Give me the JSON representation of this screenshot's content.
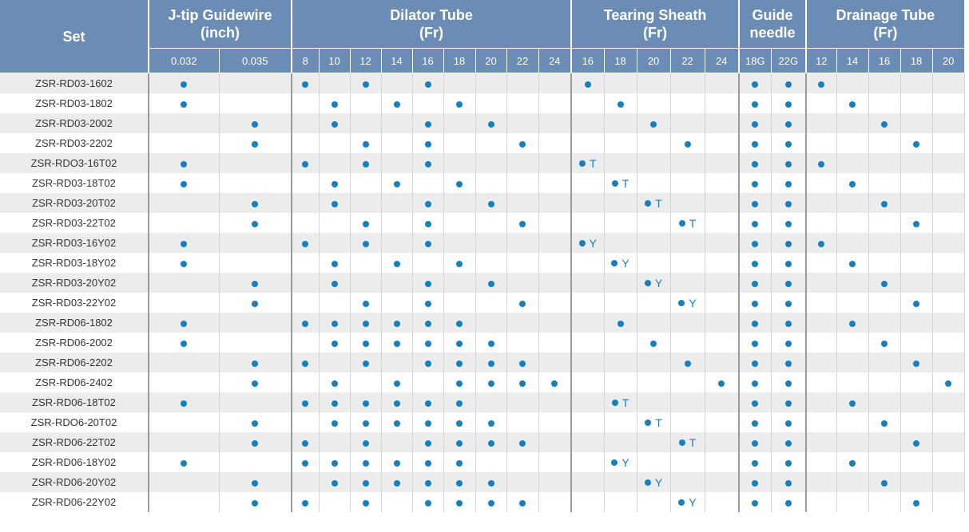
{
  "header": {
    "set_label": "Set",
    "groups": [
      {
        "key": "guidewire",
        "title_line1": "J-tip Guidewire",
        "title_line2": "(inch)",
        "sizes": [
          "0.032",
          "0.035"
        ]
      },
      {
        "key": "dilator",
        "title_line1": "Dilator Tube",
        "title_line2": "(Fr)",
        "sizes": [
          "8",
          "10",
          "12",
          "14",
          "16",
          "18",
          "20",
          "22",
          "24"
        ]
      },
      {
        "key": "sheath",
        "title_line1": "Tearing Sheath",
        "title_line2": "(Fr)",
        "sizes": [
          "16",
          "18",
          "20",
          "22",
          "24"
        ]
      },
      {
        "key": "needle",
        "title_line1": "Guide",
        "title_line2": "needle",
        "sizes": [
          "18G",
          "22G"
        ]
      },
      {
        "key": "drainage",
        "title_line1": "Drainage Tube",
        "title_line2": "(Fr)",
        "sizes": [
          "12",
          "14",
          "16",
          "18",
          "20"
        ]
      }
    ]
  },
  "colors": {
    "header_bg": "#6b8cb5",
    "dot": "#1580c0",
    "row_alt": "#ececec"
  },
  "rows": [
    {
      "set": "ZSR-RD03-1602",
      "guidewire": [
        "●",
        ""
      ],
      "dilator": [
        "●",
        "",
        "●",
        "",
        "●",
        "",
        "",
        "",
        ""
      ],
      "sheath": [
        "●",
        "",
        "",
        "",
        ""
      ],
      "needle": [
        "●",
        "●"
      ],
      "drainage": [
        "●",
        "",
        "",
        "",
        ""
      ]
    },
    {
      "set": "ZSR-RD03-1802",
      "guidewire": [
        "●",
        ""
      ],
      "dilator": [
        "",
        "●",
        "",
        "●",
        "",
        "●",
        "",
        "",
        ""
      ],
      "sheath": [
        "",
        "●",
        "",
        "",
        ""
      ],
      "needle": [
        "●",
        "●"
      ],
      "drainage": [
        "",
        "●",
        "",
        "",
        ""
      ]
    },
    {
      "set": "ZSR-RD03-2002",
      "guidewire": [
        "",
        "●"
      ],
      "dilator": [
        "",
        "●",
        "",
        "",
        "●",
        "",
        "●",
        "",
        ""
      ],
      "sheath": [
        "",
        "",
        "●",
        "",
        ""
      ],
      "needle": [
        "●",
        "●"
      ],
      "drainage": [
        "",
        "",
        "●",
        "",
        ""
      ]
    },
    {
      "set": "ZSR-RD03-2202",
      "guidewire": [
        "",
        "●"
      ],
      "dilator": [
        "",
        "",
        "●",
        "",
        "●",
        "",
        "",
        "●",
        ""
      ],
      "sheath": [
        "",
        "",
        "",
        "●",
        ""
      ],
      "needle": [
        "●",
        "●"
      ],
      "drainage": [
        "",
        "",
        "",
        "●",
        ""
      ]
    },
    {
      "set": "ZSR-RDO3-16T02",
      "guidewire": [
        "●",
        ""
      ],
      "dilator": [
        "●",
        "",
        "●",
        "",
        "●",
        "",
        "",
        "",
        ""
      ],
      "sheath": [
        "●T",
        "",
        "",
        "",
        ""
      ],
      "needle": [
        "●",
        "●"
      ],
      "drainage": [
        "●",
        "",
        "",
        "",
        ""
      ]
    },
    {
      "set": "ZSR-RD03-18T02",
      "guidewire": [
        "●",
        ""
      ],
      "dilator": [
        "",
        "●",
        "",
        "●",
        "",
        "●",
        "",
        "",
        ""
      ],
      "sheath": [
        "",
        "●T",
        "",
        "",
        ""
      ],
      "needle": [
        "●",
        "●"
      ],
      "drainage": [
        "",
        "●",
        "",
        "",
        ""
      ]
    },
    {
      "set": "ZSR-RD03-20T02",
      "guidewire": [
        "",
        "●"
      ],
      "dilator": [
        "",
        "●",
        "",
        "",
        "●",
        "",
        "●",
        "",
        ""
      ],
      "sheath": [
        "",
        "",
        "●T",
        "",
        ""
      ],
      "needle": [
        "●",
        "●"
      ],
      "drainage": [
        "",
        "",
        "●",
        "",
        ""
      ]
    },
    {
      "set": "ZSR-RD03-22T02",
      "guidewire": [
        "",
        "●"
      ],
      "dilator": [
        "",
        "",
        "●",
        "",
        "●",
        "",
        "",
        "●",
        ""
      ],
      "sheath": [
        "",
        "",
        "",
        "●T",
        ""
      ],
      "needle": [
        "●",
        "●"
      ],
      "drainage": [
        "",
        "",
        "",
        "●",
        ""
      ]
    },
    {
      "set": "ZSR-RD03-16Y02",
      "guidewire": [
        "●",
        ""
      ],
      "dilator": [
        "●",
        "",
        "●",
        "",
        "●",
        "",
        "",
        "",
        ""
      ],
      "sheath": [
        "●Y",
        "",
        "",
        "",
        ""
      ],
      "needle": [
        "●",
        "●"
      ],
      "drainage": [
        "●",
        "",
        "",
        "",
        ""
      ]
    },
    {
      "set": "ZSR-RD03-18Y02",
      "guidewire": [
        "●",
        ""
      ],
      "dilator": [
        "",
        "●",
        "",
        "●",
        "",
        "●",
        "",
        "",
        ""
      ],
      "sheath": [
        "",
        "●Y",
        "",
        "",
        ""
      ],
      "needle": [
        "●",
        "●"
      ],
      "drainage": [
        "",
        "●",
        "",
        "",
        ""
      ]
    },
    {
      "set": "ZSR-RD03-20Y02",
      "guidewire": [
        "",
        "●"
      ],
      "dilator": [
        "",
        "●",
        "",
        "",
        "●",
        "",
        "●",
        "",
        ""
      ],
      "sheath": [
        "",
        "",
        "●Y",
        "",
        ""
      ],
      "needle": [
        "●",
        "●"
      ],
      "drainage": [
        "",
        "",
        "●",
        "",
        ""
      ]
    },
    {
      "set": "ZSR-RD03-22Y02",
      "guidewire": [
        "",
        "●"
      ],
      "dilator": [
        "",
        "",
        "●",
        "",
        "●",
        "",
        "",
        "●",
        ""
      ],
      "sheath": [
        "",
        "",
        "",
        "●Y",
        ""
      ],
      "needle": [
        "●",
        "●"
      ],
      "drainage": [
        "",
        "",
        "",
        "●",
        ""
      ]
    },
    {
      "set": "ZSR-RD06-1802",
      "guidewire": [
        "●",
        ""
      ],
      "dilator": [
        "●",
        "●",
        "●",
        "●",
        "●",
        "●",
        "",
        "",
        ""
      ],
      "sheath": [
        "",
        "●",
        "",
        "",
        ""
      ],
      "needle": [
        "●",
        "●"
      ],
      "drainage": [
        "",
        "●",
        "",
        "",
        ""
      ]
    },
    {
      "set": "ZSR-RD06-2002",
      "guidewire": [
        "●",
        ""
      ],
      "dilator": [
        "",
        "●",
        "●",
        "●",
        "●",
        "●",
        "●",
        "",
        ""
      ],
      "sheath": [
        "",
        "",
        "●",
        "",
        ""
      ],
      "needle": [
        "●",
        "●"
      ],
      "drainage": [
        "",
        "",
        "●",
        "",
        ""
      ]
    },
    {
      "set": "ZSR-RD06-2202",
      "guidewire": [
        "",
        "●"
      ],
      "dilator": [
        "●",
        "",
        "●",
        "",
        "●",
        "●",
        "●",
        "●",
        ""
      ],
      "sheath": [
        "",
        "",
        "",
        "●",
        ""
      ],
      "needle": [
        "●",
        "●"
      ],
      "drainage": [
        "",
        "",
        "",
        "●",
        ""
      ]
    },
    {
      "set": "ZSR-RD06-2402",
      "guidewire": [
        "",
        "●"
      ],
      "dilator": [
        "",
        "●",
        "",
        "●",
        "",
        "●",
        "●",
        "●",
        "●"
      ],
      "sheath": [
        "",
        "",
        "",
        "",
        "●"
      ],
      "needle": [
        "●",
        "●"
      ],
      "drainage": [
        "",
        "",
        "",
        "",
        "●"
      ]
    },
    {
      "set": "ZSR-RD06-18T02",
      "guidewire": [
        "●",
        ""
      ],
      "dilator": [
        "●",
        "●",
        "●",
        "●",
        "●",
        "●",
        "",
        "",
        ""
      ],
      "sheath": [
        "",
        "●T",
        "",
        "",
        ""
      ],
      "needle": [
        "●",
        "●"
      ],
      "drainage": [
        "",
        "●",
        "",
        "",
        ""
      ]
    },
    {
      "set": "ZSR-RDO6-20T02",
      "guidewire": [
        "",
        "●"
      ],
      "dilator": [
        "",
        "●",
        "●",
        "●",
        "●",
        "●",
        "●",
        "",
        ""
      ],
      "sheath": [
        "",
        "",
        "●T",
        "",
        ""
      ],
      "needle": [
        "●",
        "●"
      ],
      "drainage": [
        "",
        "",
        "●",
        "",
        ""
      ]
    },
    {
      "set": "ZSR-RD06-22T02",
      "guidewire": [
        "",
        "●"
      ],
      "dilator": [
        "●",
        "",
        "●",
        "",
        "●",
        "●",
        "●",
        "●",
        ""
      ],
      "sheath": [
        "",
        "",
        "",
        "●T",
        ""
      ],
      "needle": [
        "●",
        "●"
      ],
      "drainage": [
        "",
        "",
        "",
        "●",
        ""
      ]
    },
    {
      "set": "ZSR-RD06-18Y02",
      "guidewire": [
        "●",
        ""
      ],
      "dilator": [
        "●",
        "●",
        "●",
        "●",
        "●",
        "●",
        "",
        "",
        ""
      ],
      "sheath": [
        "",
        "●Y",
        "",
        "",
        ""
      ],
      "needle": [
        "●",
        "●"
      ],
      "drainage": [
        "",
        "●",
        "",
        "",
        ""
      ]
    },
    {
      "set": "ZSR-RD06-20Y02",
      "guidewire": [
        "",
        "●"
      ],
      "dilator": [
        "",
        "●",
        "●",
        "●",
        "●",
        "●",
        "●",
        "",
        ""
      ],
      "sheath": [
        "",
        "",
        "●Y",
        "",
        ""
      ],
      "needle": [
        "●",
        "●"
      ],
      "drainage": [
        "",
        "",
        "●",
        "",
        ""
      ]
    },
    {
      "set": "ZSR-RD06-22Y02",
      "guidewire": [
        "",
        "●"
      ],
      "dilator": [
        "●",
        "",
        "●",
        "",
        "●",
        "●",
        "●",
        "●",
        ""
      ],
      "sheath": [
        "",
        "",
        "",
        "●Y",
        ""
      ],
      "needle": [
        "●",
        "●"
      ],
      "drainage": [
        "",
        "",
        "",
        "●",
        ""
      ]
    }
  ]
}
